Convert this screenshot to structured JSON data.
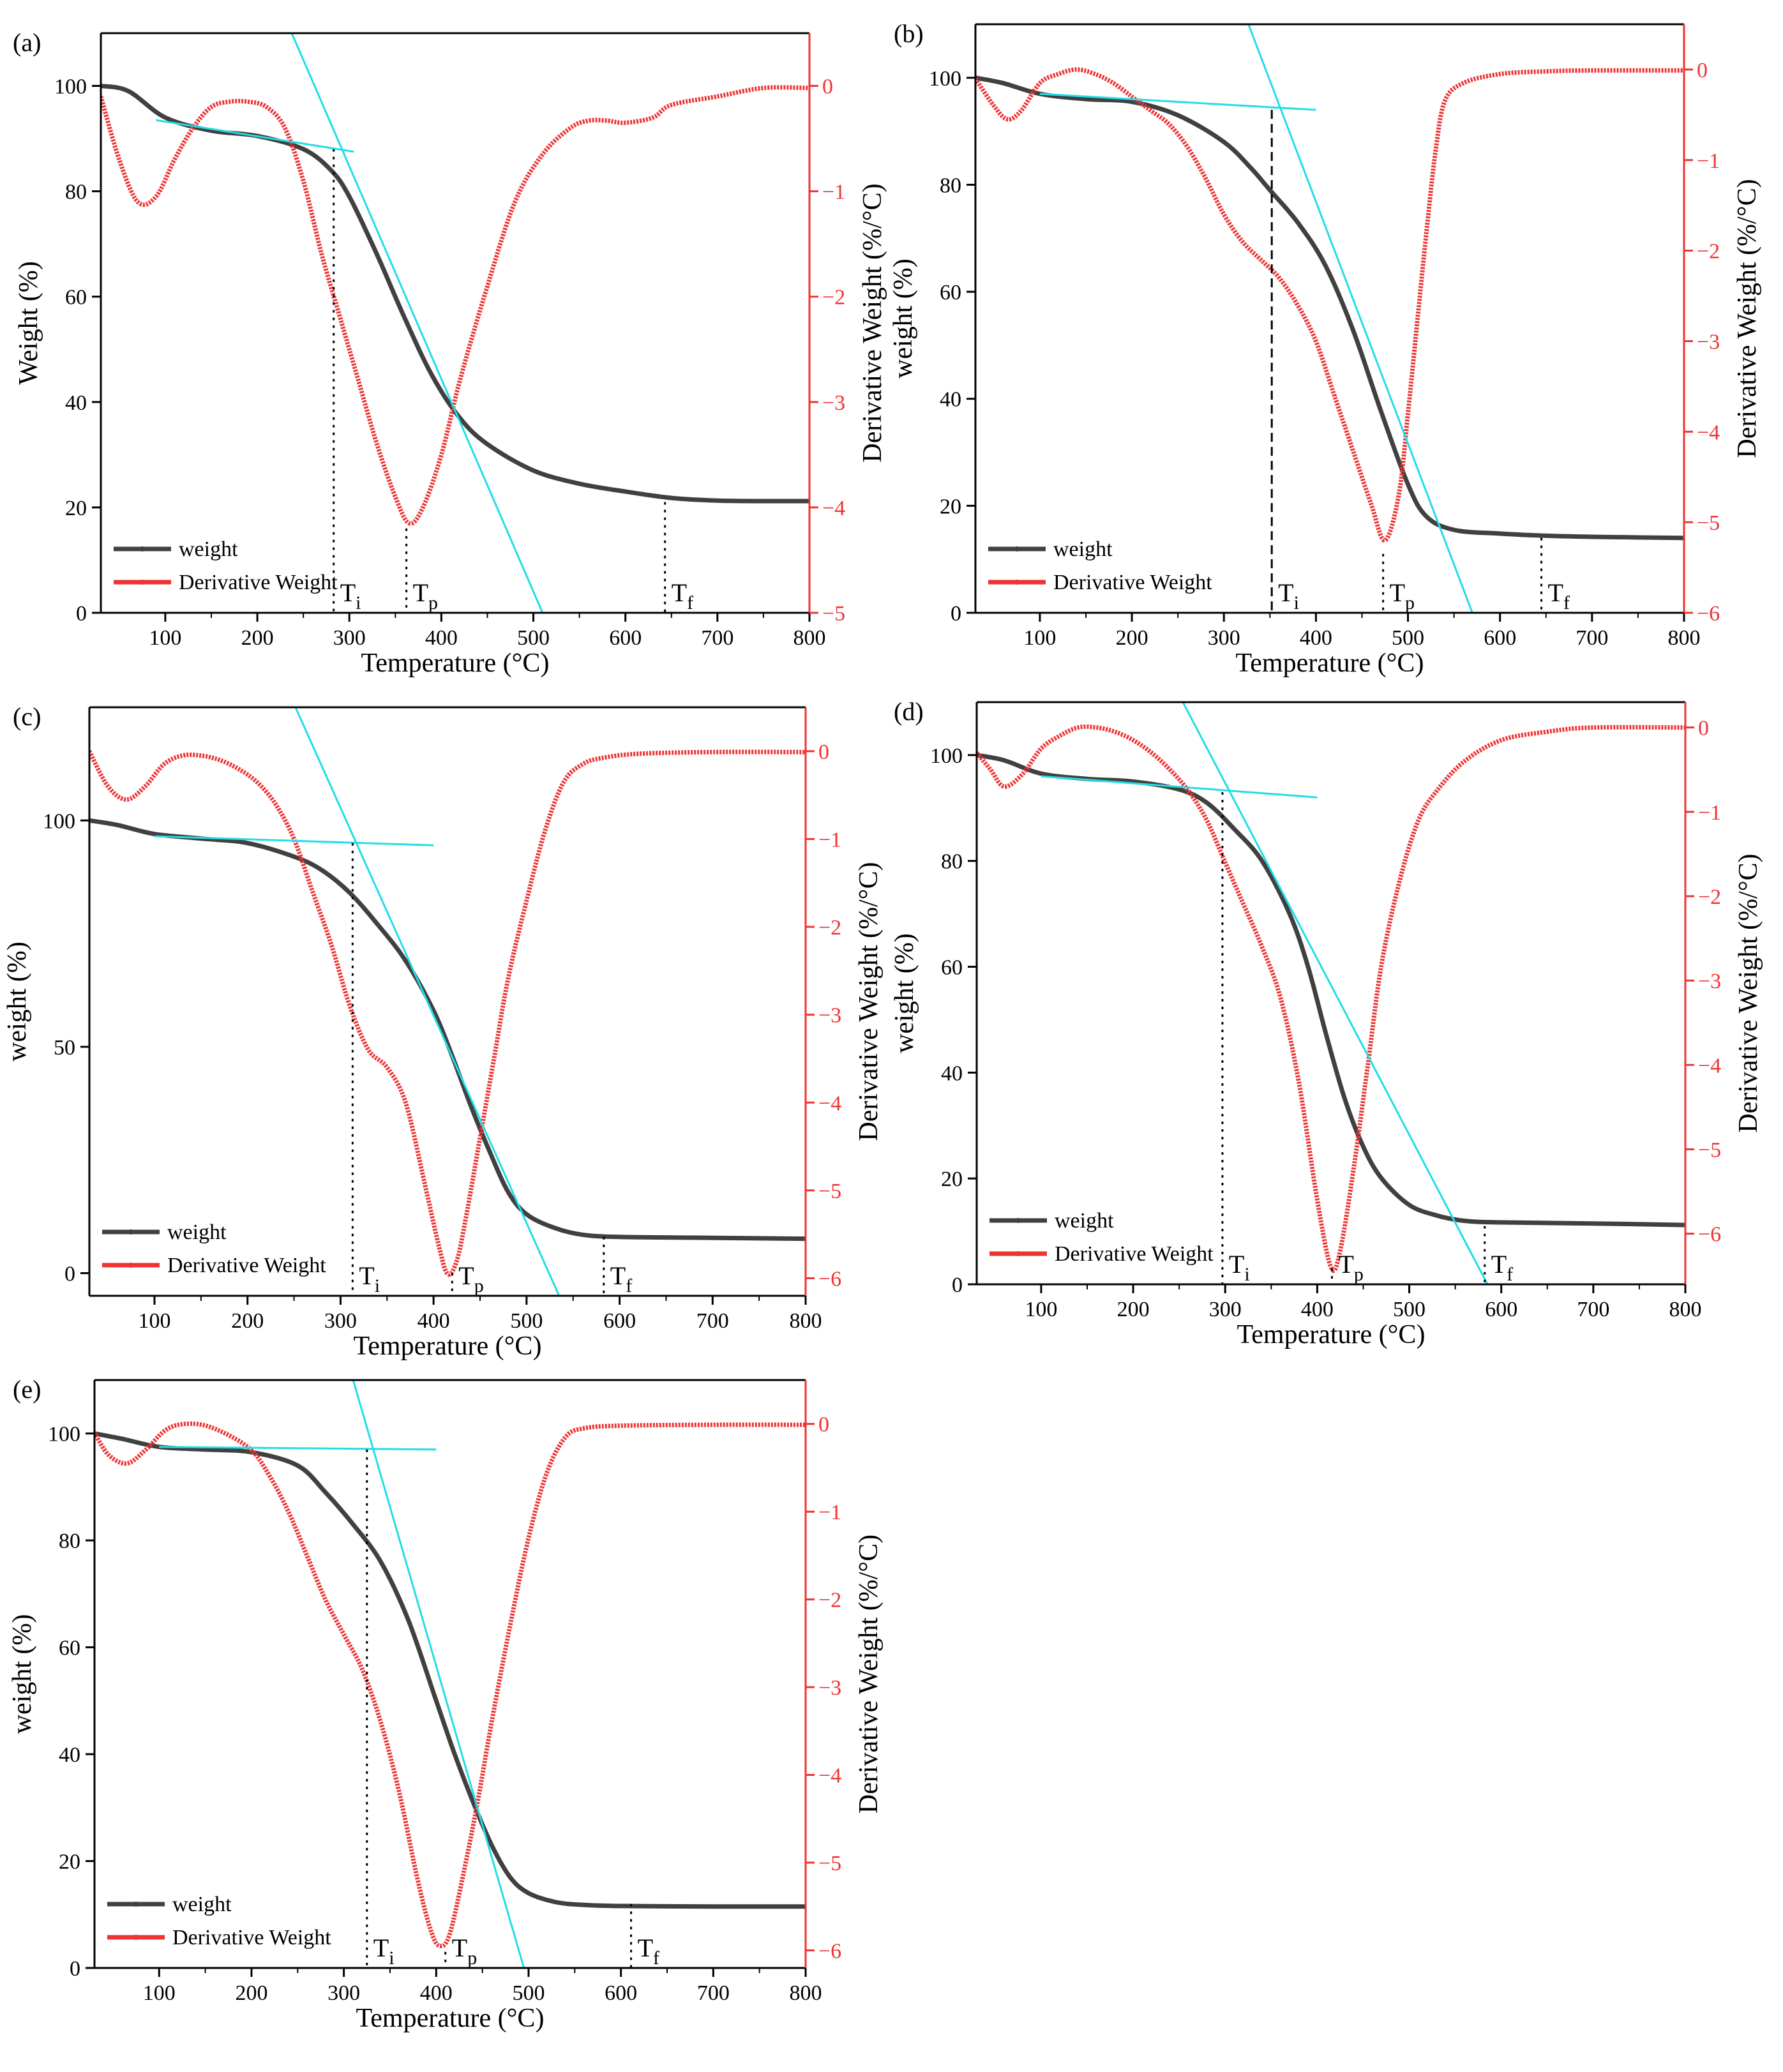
{
  "colors": {
    "weight": "#404040",
    "derivative": "#ee3333",
    "tangent": "#22dde8",
    "axis": "#000000",
    "right_axis": "#ee3333",
    "marker_line": "#000000"
  },
  "chart_data": [
    {
      "type": "line",
      "panel_label": "(a)",
      "xlabel": "Temperature (°C)",
      "ylabel": "Weight  (%)",
      "y2label": "Derivative Weight (%/°C)",
      "xlim": [
        30,
        800
      ],
      "ylim": [
        0,
        110
      ],
      "y2lim": [
        -5,
        0.5
      ],
      "xticks": [
        100,
        200,
        300,
        400,
        500,
        600,
        700,
        800
      ],
      "yticks": [
        0,
        20,
        40,
        60,
        80,
        100
      ],
      "y2ticks": [
        -5,
        -4,
        -3,
        -2,
        -1,
        0
      ],
      "legend_position": "bottom-left",
      "legend": [
        "weight",
        "Derivative Weight"
      ],
      "series": [
        {
          "name": "weight",
          "axis": "left",
          "x": [
            30,
            60,
            100,
            150,
            200,
            250,
            280,
            300,
            330,
            360,
            390,
            420,
            450,
            500,
            550,
            600,
            650,
            700,
            750,
            800
          ],
          "y": [
            100,
            99,
            94,
            91.5,
            90.5,
            88,
            84,
            79,
            68,
            56,
            45,
            37,
            32,
            27,
            24.5,
            23,
            21.8,
            21.3,
            21.2,
            21.2
          ]
        },
        {
          "name": "Derivative Weight",
          "axis": "right",
          "x": [
            30,
            50,
            70,
            90,
            110,
            130,
            150,
            170,
            190,
            210,
            230,
            250,
            270,
            290,
            310,
            330,
            350,
            365,
            380,
            400,
            420,
            450,
            480,
            510,
            540,
            560,
            580,
            600,
            630,
            650,
            700,
            750,
            800
          ],
          "y": [
            -0.1,
            -0.7,
            -1.1,
            -1.05,
            -0.7,
            -0.4,
            -0.2,
            -0.15,
            -0.15,
            -0.2,
            -0.4,
            -0.9,
            -1.6,
            -2.2,
            -2.8,
            -3.4,
            -3.9,
            -4.15,
            -4.0,
            -3.5,
            -2.8,
            -1.9,
            -1.1,
            -0.65,
            -0.4,
            -0.33,
            -0.33,
            -0.35,
            -0.3,
            -0.18,
            -0.1,
            -0.02,
            -0.02
          ]
        },
        {
          "name": "tangent-baseline",
          "axis": "left",
          "x": [
            90,
            305
          ],
          "y": [
            93.5,
            87.5
          ]
        },
        {
          "name": "tangent-slope",
          "axis": "left",
          "x": [
            230,
            510
          ],
          "y": [
            113,
            0
          ]
        }
      ],
      "markers": [
        {
          "label_main": "T",
          "label_sub": "i",
          "x": 283,
          "y_top": 88
        },
        {
          "label_main": "T",
          "label_sub": "p",
          "x": 362,
          "y_top": 16
        },
        {
          "label_main": "T",
          "label_sub": "f",
          "x": 643,
          "y_top": 21
        }
      ]
    },
    {
      "type": "line",
      "panel_label": "(b)",
      "xlabel": "Temperature (°C)",
      "ylabel": "weight (%)",
      "y2label": "Derivative Weight (%/°C)",
      "xlim": [
        30,
        800
      ],
      "ylim": [
        0,
        110
      ],
      "y2lim": [
        -6,
        0.5
      ],
      "xticks": [
        100,
        200,
        300,
        400,
        500,
        600,
        700,
        800
      ],
      "yticks": [
        0,
        20,
        40,
        60,
        80,
        100
      ],
      "y2ticks": [
        -6,
        -5,
        -4,
        -3,
        -2,
        -1,
        0
      ],
      "legend_position": "bottom-left",
      "legend": [
        "weight",
        "Derivative Weight"
      ],
      "series": [
        {
          "name": "weight",
          "axis": "left",
          "x": [
            30,
            60,
            100,
            150,
            200,
            250,
            300,
            330,
            350,
            380,
            410,
            440,
            470,
            500,
            520,
            550,
            600,
            650,
            700,
            800
          ],
          "y": [
            100,
            99,
            97,
            96,
            95.5,
            93,
            88,
            83,
            79,
            73,
            65,
            53,
            38,
            24,
            18,
            15.5,
            14.8,
            14.4,
            14.2,
            14
          ]
        },
        {
          "name": "Derivative Weight",
          "axis": "right",
          "x": [
            30,
            50,
            65,
            80,
            100,
            120,
            140,
            160,
            180,
            200,
            220,
            240,
            260,
            280,
            300,
            320,
            340,
            360,
            380,
            400,
            420,
            440,
            460,
            475,
            490,
            500,
            510,
            520,
            530,
            540,
            560,
            600,
            650,
            700,
            800
          ],
          "y": [
            -0.1,
            -0.4,
            -0.55,
            -0.45,
            -0.15,
            -0.05,
            0,
            -0.05,
            -0.15,
            -0.3,
            -0.45,
            -0.6,
            -0.85,
            -1.2,
            -1.6,
            -1.9,
            -2.1,
            -2.3,
            -2.6,
            -3.0,
            -3.6,
            -4.2,
            -4.8,
            -5.2,
            -4.7,
            -3.8,
            -2.8,
            -1.8,
            -0.9,
            -0.35,
            -0.15,
            -0.05,
            -0.02,
            -0.01,
            -0.01
          ]
        },
        {
          "name": "tangent-baseline",
          "axis": "left",
          "x": [
            100,
            400
          ],
          "y": [
            97,
            94
          ]
        },
        {
          "name": "tangent-slope",
          "axis": "left",
          "x": [
            320,
            570
          ],
          "y": [
            113,
            0
          ]
        }
      ],
      "markers": [
        {
          "label_main": "T",
          "label_sub": "i",
          "x": 352,
          "y_top": 94
        },
        {
          "label_main": "T",
          "label_sub": "p",
          "x": 473,
          "y_top": 11
        },
        {
          "label_main": "T",
          "label_sub": "f",
          "x": 645,
          "y_top": 14
        }
      ]
    },
    {
      "type": "line",
      "panel_label": "(c)",
      "xlabel": "Temperature (°C)",
      "ylabel": "weight (%)",
      "y2label": "Derivative Weight (%/°C)",
      "xlim": [
        30,
        800
      ],
      "ylim": [
        -5,
        125
      ],
      "y2lim": [
        -6.2,
        0.5
      ],
      "xticks": [
        100,
        200,
        300,
        400,
        500,
        600,
        700,
        800
      ],
      "yticks": [
        0,
        50,
        100
      ],
      "y2ticks": [
        -6,
        -5,
        -4,
        -3,
        -2,
        -1,
        0
      ],
      "legend_position": "bottom-left",
      "legend": [
        "weight",
        "Derivative Weight"
      ],
      "series": [
        {
          "name": "weight",
          "axis": "left",
          "x": [
            30,
            60,
            100,
            150,
            200,
            250,
            280,
            310,
            340,
            370,
            400,
            420,
            440,
            460,
            480,
            500,
            530,
            560,
            600,
            700,
            800
          ],
          "y": [
            100,
            99,
            97,
            96,
            95,
            92,
            89,
            84,
            77,
            69,
            58,
            48,
            37,
            27,
            18,
            13,
            10,
            8.5,
            8,
            7.8,
            7.6
          ]
        },
        {
          "name": "Derivative Weight",
          "axis": "right",
          "x": [
            30,
            50,
            70,
            90,
            110,
            130,
            150,
            170,
            190,
            210,
            230,
            250,
            270,
            290,
            310,
            330,
            350,
            370,
            390,
            405,
            415,
            425,
            435,
            450,
            465,
            480,
            500,
            520,
            540,
            560,
            580,
            620,
            700,
            800
          ],
          "y": [
            0,
            -0.4,
            -0.55,
            -0.4,
            -0.15,
            -0.05,
            -0.05,
            -0.1,
            -0.2,
            -0.35,
            -0.6,
            -1.0,
            -1.6,
            -2.2,
            -2.9,
            -3.4,
            -3.6,
            -4.0,
            -4.9,
            -5.6,
            -5.95,
            -5.8,
            -5.3,
            -4.4,
            -3.5,
            -2.6,
            -1.7,
            -0.9,
            -0.35,
            -0.15,
            -0.08,
            -0.03,
            -0.01,
            -0.01
          ]
        },
        {
          "name": "tangent-baseline",
          "axis": "left",
          "x": [
            100,
            400
          ],
          "y": [
            96.5,
            94.5
          ]
        },
        {
          "name": "tangent-slope",
          "axis": "left",
          "x": [
            245,
            535
          ],
          "y": [
            128,
            -5
          ]
        }
      ],
      "markers": [
        {
          "label_main": "T",
          "label_sub": "i",
          "x": 313,
          "y_top": 95
        },
        {
          "label_main": "T",
          "label_sub": "p",
          "x": 420,
          "y_top": 0
        },
        {
          "label_main": "T",
          "label_sub": "f",
          "x": 583,
          "y_top": 8
        }
      ]
    },
    {
      "type": "line",
      "panel_label": "(d)",
      "xlabel": "Temperature (°C)",
      "ylabel": "weight (%)",
      "y2label": "Derivative Weight (%/°C)",
      "xlim": [
        30,
        800
      ],
      "ylim": [
        0,
        110
      ],
      "y2lim": [
        -6.6,
        0.3
      ],
      "xticks": [
        100,
        200,
        300,
        400,
        500,
        600,
        700,
        800
      ],
      "yticks": [
        0,
        20,
        40,
        60,
        80,
        100
      ],
      "y2ticks": [
        -6,
        -5,
        -4,
        -3,
        -2,
        -1,
        0
      ],
      "legend_position": "bottom-left",
      "legend": [
        "weight",
        "Derivative Weight"
      ],
      "series": [
        {
          "name": "weight",
          "axis": "left",
          "x": [
            30,
            60,
            100,
            150,
            200,
            250,
            280,
            310,
            340,
            370,
            390,
            410,
            430,
            450,
            470,
            500,
            530,
            560,
            600,
            700,
            800
          ],
          "y": [
            100,
            99,
            96.5,
            95.5,
            95,
            93.5,
            91,
            86,
            80,
            70,
            60,
            47,
            35,
            26,
            20,
            15,
            13,
            12,
            11.7,
            11.5,
            11.2
          ]
        },
        {
          "name": "Derivative Weight",
          "axis": "right",
          "x": [
            30,
            45,
            60,
            80,
            100,
            120,
            140,
            160,
            180,
            200,
            220,
            240,
            260,
            280,
            300,
            320,
            340,
            360,
            380,
            400,
            415,
            425,
            440,
            455,
            470,
            490,
            510,
            530,
            560,
            600,
            650,
            700,
            800
          ],
          "y": [
            -0.3,
            -0.5,
            -0.7,
            -0.55,
            -0.25,
            -0.1,
            0,
            0,
            -0.05,
            -0.15,
            -0.3,
            -0.5,
            -0.75,
            -1.1,
            -1.6,
            -2.1,
            -2.6,
            -3.2,
            -4.2,
            -5.6,
            -6.4,
            -6.2,
            -5.2,
            -4.0,
            -2.8,
            -1.8,
            -1.1,
            -0.75,
            -0.4,
            -0.15,
            -0.05,
            0,
            0
          ]
        },
        {
          "name": "tangent-baseline",
          "axis": "left",
          "x": [
            100,
            400
          ],
          "y": [
            96,
            92
          ]
        },
        {
          "name": "tangent-slope",
          "axis": "left",
          "x": [
            245,
            585
          ],
          "y": [
            113,
            0
          ]
        }
      ],
      "markers": [
        {
          "label_main": "T",
          "label_sub": "i",
          "x": 297,
          "y_top": 93
        },
        {
          "label_main": "T",
          "label_sub": "p",
          "x": 416,
          "y_top": 3
        },
        {
          "label_main": "T",
          "label_sub": "f",
          "x": 582,
          "y_top": 11
        }
      ]
    },
    {
      "type": "line",
      "panel_label": "(e)",
      "xlabel": "Temperature (°C)",
      "ylabel": "weight (%)",
      "y2label": "Derivative Weight (%/°C)",
      "xlim": [
        30,
        800
      ],
      "ylim": [
        0,
        110
      ],
      "y2lim": [
        -6.2,
        0.5
      ],
      "xticks": [
        100,
        200,
        300,
        400,
        500,
        600,
        700,
        800
      ],
      "yticks": [
        0,
        20,
        40,
        60,
        80,
        100
      ],
      "y2ticks": [
        -6,
        -5,
        -4,
        -3,
        -2,
        -1,
        0
      ],
      "legend_position": "bottom-left",
      "legend": [
        "weight",
        "Derivative Weight"
      ],
      "series": [
        {
          "name": "weight",
          "axis": "left",
          "x": [
            30,
            60,
            100,
            150,
            200,
            250,
            280,
            310,
            340,
            370,
            400,
            420,
            440,
            460,
            480,
            500,
            530,
            560,
            600,
            700,
            800
          ],
          "y": [
            100,
            99,
            97.5,
            97,
            96.5,
            94,
            89,
            83,
            76,
            65,
            50,
            40,
            31,
            23,
            17,
            14,
            12.3,
            11.8,
            11.6,
            11.5,
            11.5
          ]
        },
        {
          "name": "Derivative Weight",
          "axis": "right",
          "x": [
            30,
            45,
            65,
            85,
            110,
            140,
            170,
            200,
            220,
            240,
            260,
            280,
            300,
            320,
            340,
            360,
            380,
            395,
            405,
            415,
            430,
            445,
            460,
            480,
            500,
            520,
            540,
            560,
            600,
            700,
            800
          ],
          "y": [
            -0.1,
            -0.35,
            -0.45,
            -0.3,
            -0.05,
            0,
            -0.1,
            -0.3,
            -0.6,
            -1.0,
            -1.5,
            -2.0,
            -2.4,
            -2.8,
            -3.4,
            -4.2,
            -5.2,
            -5.8,
            -5.95,
            -5.8,
            -5.1,
            -4.3,
            -3.4,
            -2.3,
            -1.3,
            -0.55,
            -0.15,
            -0.05,
            -0.02,
            -0.01,
            -0.01
          ]
        },
        {
          "name": "tangent-baseline",
          "axis": "left",
          "x": [
            100,
            400
          ],
          "y": [
            97.5,
            97
          ]
        },
        {
          "name": "tangent-slope",
          "axis": "left",
          "x": [
            305,
            495
          ],
          "y": [
            113,
            0
          ]
        }
      ],
      "markers": [
        {
          "label_main": "T",
          "label_sub": "i",
          "x": 325,
          "y_top": 97
        },
        {
          "label_main": "T",
          "label_sub": "p",
          "x": 410,
          "y_top": 3
        },
        {
          "label_main": "T",
          "label_sub": "f",
          "x": 611,
          "y_top": 12
        }
      ]
    }
  ]
}
